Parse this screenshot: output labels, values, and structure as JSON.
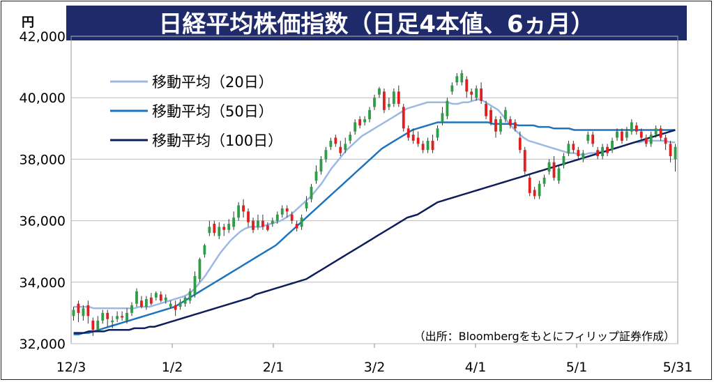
{
  "chart_data": {
    "type": "candlestick",
    "title": "日経平均株価指数（日足4本値、6ヵ月）",
    "ylabel": "円",
    "source": "（出所：Bloombergをもとにフィリップ証券作成）",
    "ylim": [
      32000,
      42000
    ],
    "yticks": [
      "32,000",
      "34,000",
      "36,000",
      "38,000",
      "40,000",
      "42,000"
    ],
    "xticks": [
      "12/3",
      "1/2",
      "2/1",
      "3/2",
      "4/1",
      "5/1",
      "5/31"
    ],
    "grid": true,
    "legend_position": "top-left",
    "colors": {
      "title_bg": "#1F2A6B",
      "title_text": "#FFFFFF",
      "up": "#2E9D48",
      "down": "#E02020",
      "ma20": "#9DB8E3",
      "ma50": "#1E73BE",
      "ma100": "#0E1E5B"
    },
    "candles_approx": [
      [
        32900,
        33100,
        32750,
        33200
      ],
      [
        33300,
        33000,
        32700,
        33400
      ],
      [
        32900,
        33150,
        32750,
        33250
      ],
      [
        33250,
        32900,
        32650,
        33400
      ],
      [
        32750,
        32450,
        32250,
        32850
      ],
      [
        32450,
        32750,
        32400,
        32900
      ],
      [
        32750,
        33000,
        32650,
        33100
      ],
      [
        33000,
        32800,
        32550,
        33100
      ],
      [
        32700,
        32750,
        32500,
        32900
      ],
      [
        32800,
        32900,
        32700,
        33050
      ],
      [
        32900,
        32850,
        32750,
        33050
      ],
      [
        32750,
        33000,
        32650,
        33150
      ],
      [
        33000,
        33250,
        32900,
        33350
      ],
      [
        33300,
        33700,
        33200,
        33800
      ],
      [
        33400,
        33200,
        33150,
        33550
      ],
      [
        33200,
        33450,
        33100,
        33550
      ],
      [
        33500,
        33300,
        33250,
        33650
      ],
      [
        33500,
        33650,
        33400,
        33700
      ],
      [
        33600,
        33400,
        33350,
        33700
      ],
      [
        33400,
        33500,
        33300,
        33600
      ],
      [
        33200,
        33300,
        33150,
        33400
      ],
      [
        33250,
        33100,
        32900,
        33400
      ],
      [
        33200,
        33350,
        33100,
        33450
      ],
      [
        33300,
        33500,
        33200,
        33550
      ],
      [
        33400,
        33700,
        33300,
        33800
      ],
      [
        33600,
        34200,
        33500,
        34350
      ],
      [
        34100,
        34750,
        34000,
        34800
      ],
      [
        34900,
        35200,
        34800,
        35250
      ],
      [
        35600,
        35800,
        35500,
        36000
      ],
      [
        35900,
        35600,
        35500,
        36000
      ],
      [
        35500,
        35800,
        35400,
        35950
      ],
      [
        35800,
        35700,
        35500,
        35900
      ],
      [
        35700,
        35900,
        35600,
        36050
      ],
      [
        35800,
        36100,
        35700,
        36300
      ],
      [
        36100,
        36500,
        36000,
        36600
      ],
      [
        36500,
        36300,
        36100,
        36700
      ],
      [
        36300,
        35950,
        35800,
        36400
      ],
      [
        36000,
        35700,
        35600,
        36100
      ],
      [
        35800,
        36000,
        35700,
        36200
      ],
      [
        36000,
        35800,
        35700,
        36200
      ],
      [
        35850,
        35700,
        35650,
        35950
      ],
      [
        35900,
        36000,
        35800,
        36100
      ],
      [
        36000,
        36200,
        35900,
        36300
      ],
      [
        36200,
        36400,
        36100,
        36500
      ],
      [
        36400,
        36300,
        36100,
        36500
      ],
      [
        36200,
        36000,
        35900,
        36300
      ],
      [
        35900,
        35750,
        35650,
        36000
      ],
      [
        35800,
        36100,
        35700,
        36200
      ],
      [
        36400,
        36600,
        36300,
        36800
      ],
      [
        36700,
        37100,
        36600,
        37200
      ],
      [
        37300,
        37600,
        37200,
        37800
      ],
      [
        37600,
        38000,
        37500,
        38100
      ],
      [
        38000,
        38300,
        37900,
        38400
      ],
      [
        38400,
        38600,
        38300,
        38700
      ],
      [
        38700,
        38500,
        38400,
        38800
      ],
      [
        38400,
        38200,
        38100,
        38600
      ],
      [
        38300,
        38500,
        38200,
        38700
      ],
      [
        38600,
        38800,
        38500,
        38900
      ],
      [
        38900,
        39200,
        38800,
        39300
      ],
      [
        39300,
        39100,
        39000,
        39400
      ],
      [
        39200,
        39300,
        39100,
        39400
      ],
      [
        39300,
        39600,
        39200,
        39700
      ],
      [
        39700,
        40000,
        39600,
        40100
      ],
      [
        40100,
        40300,
        40000,
        40350
      ],
      [
        40200,
        39600,
        39500,
        40300
      ],
      [
        39700,
        39800,
        39600,
        40000
      ],
      [
        39800,
        40200,
        39700,
        40300
      ],
      [
        40200,
        39800,
        39700,
        40400
      ],
      [
        39700,
        39000,
        38900,
        39800
      ],
      [
        39000,
        38700,
        38600,
        39100
      ],
      [
        38800,
        38600,
        38500,
        39000
      ],
      [
        38700,
        38500,
        38400,
        38900
      ],
      [
        38500,
        38300,
        38200,
        38600
      ],
      [
        38300,
        38600,
        38200,
        38700
      ],
      [
        38600,
        38300,
        38200,
        38800
      ],
      [
        38700,
        39000,
        38600,
        39100
      ],
      [
        39200,
        39500,
        39100,
        39700
      ],
      [
        39400,
        39900,
        39300,
        40000
      ],
      [
        40200,
        40400,
        40100,
        40500
      ],
      [
        40500,
        40700,
        40400,
        40800
      ],
      [
        40500,
        40800,
        40400,
        40900
      ],
      [
        40600,
        40200,
        40000,
        40700
      ],
      [
        40200,
        40100,
        39900,
        40300
      ],
      [
        40000,
        40300,
        39900,
        40400
      ],
      [
        40300,
        39900,
        39800,
        40500
      ],
      [
        39800,
        39400,
        39300,
        39900
      ],
      [
        39600,
        39200,
        39100,
        39700
      ],
      [
        39300,
        38900,
        38700,
        39400
      ],
      [
        38900,
        39300,
        38800,
        39400
      ],
      [
        39300,
        39600,
        39200,
        39700
      ],
      [
        39300,
        39100,
        39000,
        39400
      ],
      [
        39200,
        39000,
        38900,
        39300
      ],
      [
        38700,
        38300,
        38200,
        38900
      ],
      [
        38300,
        37600,
        37500,
        38400
      ],
      [
        37400,
        36900,
        36800,
        37500
      ],
      [
        37000,
        36800,
        36700,
        37100
      ],
      [
        36800,
        37200,
        36700,
        37300
      ],
      [
        37200,
        37400,
        37100,
        37500
      ],
      [
        37600,
        37900,
        37500,
        38000
      ],
      [
        37900,
        37400,
        37300,
        38100
      ],
      [
        37300,
        37700,
        37200,
        37800
      ],
      [
        37800,
        38100,
        37700,
        38200
      ],
      [
        38200,
        38500,
        38100,
        38600
      ],
      [
        38500,
        38300,
        38200,
        38600
      ],
      [
        38300,
        38100,
        38000,
        38400
      ],
      [
        38000,
        38200,
        37900,
        38300
      ],
      [
        38600,
        38800,
        38500,
        38900
      ],
      [
        38800,
        38500,
        38400,
        38900
      ],
      [
        38300,
        38100,
        38000,
        38400
      ],
      [
        38100,
        38400,
        38000,
        38500
      ],
      [
        38400,
        38200,
        38100,
        38500
      ],
      [
        38300,
        38600,
        38200,
        38700
      ],
      [
        38700,
        38900,
        38600,
        39000
      ],
      [
        38900,
        38600,
        38500,
        39000
      ],
      [
        38700,
        38900,
        38600,
        39050
      ],
      [
        38900,
        39200,
        38800,
        39300
      ],
      [
        39100,
        38900,
        38800,
        39200
      ],
      [
        38900,
        38700,
        38600,
        39000
      ],
      [
        38700,
        38500,
        38400,
        38800
      ],
      [
        38500,
        38800,
        38400,
        38900
      ],
      [
        38800,
        39000,
        38700,
        39100
      ],
      [
        39000,
        38700,
        38600,
        39100
      ],
      [
        38700,
        38500,
        38300,
        38800
      ],
      [
        38500,
        38100,
        37900,
        38600
      ],
      [
        38000,
        38400,
        37600,
        38500
      ]
    ],
    "series": [
      {
        "name": "移動平均（20日）",
        "key": "ma20",
        "values": [
          33200,
          33200,
          33200,
          33200,
          33150,
          33150,
          33150,
          33150,
          33150,
          33150,
          33150,
          33150,
          33150,
          33200,
          33200,
          33200,
          33250,
          33300,
          33350,
          33400,
          33450,
          33500,
          33550,
          33650,
          33800,
          34000,
          34200,
          34450,
          34700,
          34950,
          35150,
          35350,
          35500,
          35650,
          35750,
          35800,
          35800,
          35800,
          35850,
          35900,
          35950,
          36000,
          36100,
          36200,
          36350,
          36500,
          36650,
          36800,
          37000,
          37200,
          37450,
          37700,
          37900,
          38100,
          38300,
          38450,
          38600,
          38750,
          38850,
          38950,
          39050,
          39150,
          39250,
          39350,
          39450,
          39550,
          39650,
          39700,
          39750,
          39800,
          39850,
          39850,
          39850,
          39850,
          39850,
          39800,
          39800,
          39850,
          39850,
          39900,
          39950,
          39900,
          39800,
          39700,
          39600,
          39400,
          39200,
          39000,
          38850,
          38700,
          38600,
          38550,
          38500,
          38450,
          38400,
          38350,
          38300,
          38250,
          38200,
          38200,
          38150,
          38150,
          38200,
          38200,
          38250,
          38250,
          38300,
          38350,
          38400,
          38450,
          38500,
          38550,
          38550,
          38600,
          38600,
          38600,
          38600,
          38600,
          38550,
          38550
        ]
      },
      {
        "name": "移動平均（50日）",
        "key": "ma50",
        "values": [
          32300,
          32300,
          32350,
          32350,
          32400,
          32450,
          32500,
          32550,
          32600,
          32650,
          32700,
          32750,
          32800,
          32850,
          32900,
          32950,
          33000,
          33050,
          33100,
          33150,
          33200,
          33300,
          33400,
          33500,
          33600,
          33700,
          33800,
          33900,
          34000,
          34100,
          34200,
          34300,
          34400,
          34500,
          34600,
          34700,
          34800,
          34900,
          35000,
          35100,
          35200,
          35350,
          35500,
          35650,
          35800,
          35950,
          36100,
          36250,
          36400,
          36550,
          36700,
          36850,
          37000,
          37150,
          37300,
          37450,
          37600,
          37750,
          37900,
          38050,
          38200,
          38350,
          38450,
          38550,
          38650,
          38750,
          38850,
          38950,
          39000,
          39050,
          39100,
          39150,
          39200,
          39200,
          39200,
          39200,
          39200,
          39200,
          39200,
          39200,
          39200,
          39200,
          39200,
          39150,
          39150,
          39150,
          39150,
          39150,
          39100,
          39100,
          39100,
          39100,
          39050,
          39050,
          39050,
          39000,
          39000,
          39000,
          39000,
          38950,
          38950,
          38950,
          38950,
          38950,
          38950,
          38950,
          38950,
          38950,
          38950,
          38950,
          38950,
          38950,
          38950,
          38950,
          38950,
          38950,
          38950,
          38950,
          38950,
          38950
        ]
      },
      {
        "name": "移動平均（100日）",
        "key": "ma100",
        "values": [
          32350,
          32350,
          32350,
          32400,
          32400,
          32400,
          32400,
          32450,
          32450,
          32450,
          32450,
          32450,
          32500,
          32500,
          32500,
          32550,
          32550,
          32600,
          32650,
          32700,
          32750,
          32800,
          32850,
          32900,
          32950,
          33000,
          33050,
          33100,
          33150,
          33200,
          33250,
          33300,
          33350,
          33400,
          33450,
          33500,
          33600,
          33650,
          33700,
          33750,
          33800,
          33850,
          33900,
          33950,
          34000,
          34050,
          34100,
          34200,
          34300,
          34400,
          34500,
          34600,
          34700,
          34800,
          34900,
          35000,
          35100,
          35200,
          35300,
          35400,
          35500,
          35600,
          35700,
          35800,
          35900,
          36000,
          36100,
          36150,
          36200,
          36300,
          36400,
          36500,
          36600,
          36650,
          36700,
          36750,
          36800,
          36850,
          36900,
          36950,
          37000,
          37050,
          37100,
          37150,
          37200,
          37250,
          37300,
          37350,
          37400,
          37450,
          37500,
          37550,
          37600,
          37650,
          37700,
          37750,
          37800,
          37850,
          37900,
          37950,
          38000,
          38050,
          38100,
          38150,
          38200,
          38250,
          38300,
          38350,
          38400,
          38450,
          38500,
          38550,
          38600,
          38650,
          38700,
          38750,
          38800,
          38850,
          38900,
          38950
        ]
      }
    ]
  }
}
